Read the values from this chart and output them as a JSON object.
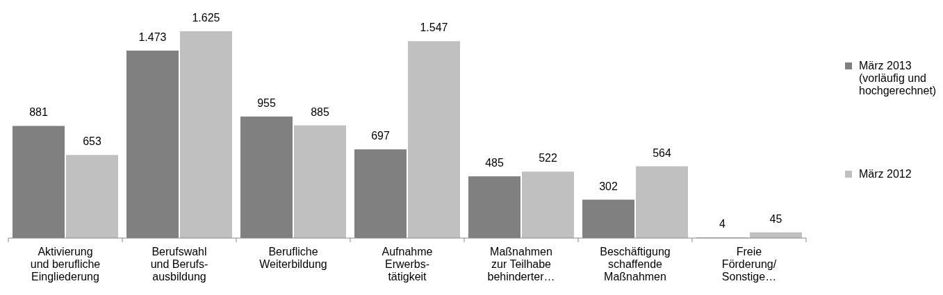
{
  "chart_data": {
    "type": "bar",
    "categories": [
      "Aktivierung\nund berufliche\nEingliederung",
      "Berufswahl\nund Berufs-\nausbildung",
      "Berufliche\nWeiterbildung",
      "Aufnahme\nErwerbs-\ntätigkeit",
      "Maßnahmen\nzur Teilhabe\nbehinderter…",
      "Beschäftigung\nschaffende\nMaßnahmen",
      "Freie\nFörderung/\nSonstige…"
    ],
    "series": [
      {
        "name": "März 2013\n(vorläufig und\nhochgerechnet)",
        "color": "#808080",
        "values": [
          881,
          1473,
          955,
          697,
          485,
          302,
          4
        ],
        "value_labels": [
          "881",
          "1.473",
          "955",
          "697",
          "485",
          "302",
          "4"
        ]
      },
      {
        "name": "März 2012",
        "color": "#c0c0c0",
        "values": [
          653,
          1625,
          885,
          1547,
          522,
          564,
          45
        ],
        "value_labels": [
          "653",
          "1.625",
          "885",
          "1.547",
          "522",
          "564",
          "45"
        ]
      }
    ],
    "legend": "right"
  }
}
